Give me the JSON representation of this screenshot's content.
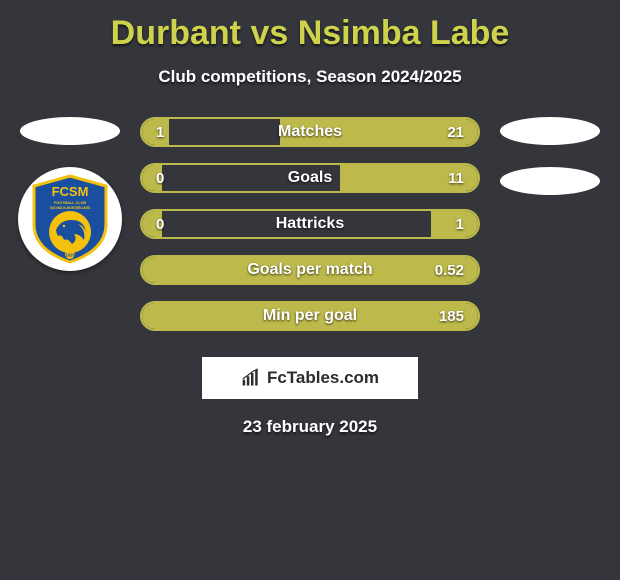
{
  "title": "Durbant vs Nsimba Labe",
  "subtitle": "Club competitions, Season 2024/2025",
  "date": "23 february 2025",
  "brand": "FcTables.com",
  "colors": {
    "background": "#34363c",
    "accent": "#bdb94a",
    "title": "#cfd34b",
    "text": "#ffffff",
    "badge_blue": "#1a4fa0",
    "badge_yellow": "#f4c20d"
  },
  "left_player": {
    "placeholder": true,
    "club_badge": {
      "text_top": "FCSM",
      "text_mid": "FOOTBALL CLUB",
      "text_bottom": "SOCHAUX-MONTBÉLIARD",
      "year": "1928"
    }
  },
  "right_player": {
    "placeholders": 2
  },
  "stats": [
    {
      "label": "Matches",
      "left_val": "1",
      "right_val": "21",
      "left_fill_pct": 8,
      "right_fill_pct": 59
    },
    {
      "label": "Goals",
      "left_val": "0",
      "right_val": "11",
      "left_fill_pct": 6,
      "right_fill_pct": 41
    },
    {
      "label": "Hattricks",
      "left_val": "0",
      "right_val": "1",
      "left_fill_pct": 6,
      "right_fill_pct": 14
    },
    {
      "label": "Goals per match",
      "left_val": "",
      "right_val": "0.52",
      "left_fill_pct": 24,
      "right_fill_pct": 76
    },
    {
      "label": "Min per goal",
      "left_val": "",
      "right_val": "185",
      "left_fill_pct": 38,
      "right_fill_pct": 62
    }
  ]
}
